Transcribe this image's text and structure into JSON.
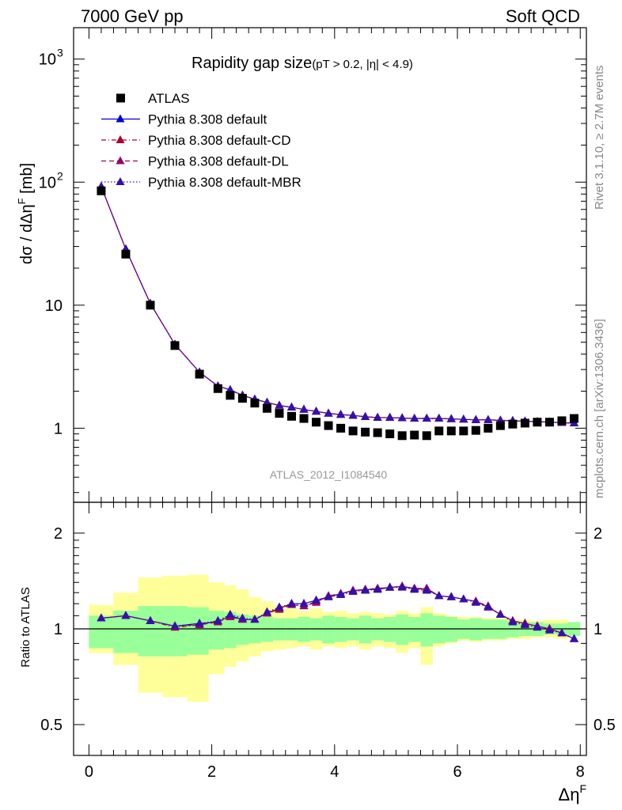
{
  "header": {
    "left": "7000 GeV pp",
    "right": "Soft QCD"
  },
  "side_labels": {
    "rivet": "Rivet 3.1.10, ≥ 2.7M events",
    "mcplots": "mcplots.cern.ch [arXiv:1306.3436]"
  },
  "chart_data": {
    "type": "scatter",
    "title": "Rapidity gap size",
    "subtitle": "(pT > 0.2, |η| < 4.9)",
    "analysis_tag": "ATLAS_2012_I1084540",
    "main": {
      "ylabel": "dσ / dΔηF [mb]",
      "ylabel_parts": {
        "a": "dσ / dΔη",
        "sup": "F",
        "b": " [mb]"
      },
      "yscale": "log",
      "ylim": [
        0.25,
        1800
      ],
      "yticks": [
        {
          "value": 1,
          "label": "1"
        },
        {
          "value": 10,
          "label": "10"
        },
        {
          "value": 100,
          "label": "10",
          "sup": "2"
        },
        {
          "value": 1000,
          "label": "10",
          "sup": "3"
        }
      ]
    },
    "ratio": {
      "ylabel": "Ratio to ATLAS",
      "yscale": "log",
      "ylim": [
        0.4,
        2.5
      ],
      "yticks": [
        {
          "value": 0.5,
          "label": "0.5"
        },
        {
          "value": 1,
          "label": "1"
        },
        {
          "value": 2,
          "label": "2"
        }
      ]
    },
    "xlabel": "ΔηF",
    "xlabel_parts": {
      "a": "Δη",
      "sup": "F"
    },
    "xlim": [
      -0.25,
      8.1
    ],
    "xticks": [
      0,
      2,
      4,
      6,
      8
    ],
    "legend_position": "top-left",
    "data": {
      "name": "ATLAS",
      "x": [
        0.2,
        0.6,
        1.0,
        1.4,
        1.8,
        2.1,
        2.3,
        2.5,
        2.7,
        2.9,
        3.1,
        3.3,
        3.5,
        3.7,
        3.9,
        4.1,
        4.3,
        4.5,
        4.7,
        4.9,
        5.1,
        5.3,
        5.5,
        5.7,
        5.9,
        6.1,
        6.3,
        6.5,
        6.7,
        6.9,
        7.1,
        7.3,
        7.5,
        7.7,
        7.9
      ],
      "y": [
        85,
        26,
        10,
        4.7,
        2.75,
        2.1,
        1.85,
        1.75,
        1.6,
        1.45,
        1.32,
        1.25,
        1.2,
        1.12,
        1.05,
        1.0,
        0.95,
        0.93,
        0.92,
        0.9,
        0.87,
        0.88,
        0.87,
        0.95,
        0.95,
        0.95,
        0.96,
        1.0,
        1.05,
        1.08,
        1.1,
        1.12,
        1.12,
        1.15,
        1.2
      ]
    },
    "band_inner": [
      0.87,
      1.1,
      0.84,
      1.14,
      0.82,
      1.18,
      0.82,
      1.18,
      0.83,
      1.17,
      0.86,
      1.14,
      0.87,
      1.13,
      0.89,
      1.11,
      0.9,
      1.1,
      0.91,
      1.09,
      0.92,
      1.08,
      0.92,
      1.08,
      0.91,
      1.09,
      0.92,
      1.08,
      0.9,
      1.1,
      0.91,
      1.09,
      0.92,
      1.08,
      0.9,
      1.1,
      0.92,
      1.08,
      0.91,
      1.09,
      0.89,
      1.11,
      0.91,
      1.09,
      0.88,
      1.12,
      0.9,
      1.1,
      0.91,
      1.09,
      0.93,
      1.07,
      0.92,
      1.08,
      0.93,
      1.07,
      0.93,
      1.07,
      0.94,
      1.06,
      0.95,
      1.05,
      0.95,
      1.05,
      0.96,
      1.04,
      0.96,
      1.04,
      0.95,
      1.05
    ],
    "band_outer": [
      0.84,
      1.19,
      0.77,
      1.3,
      0.63,
      1.45,
      0.61,
      1.47,
      0.59,
      1.48,
      0.72,
      1.4,
      0.76,
      1.37,
      0.79,
      1.33,
      0.82,
      1.26,
      0.85,
      1.22,
      0.86,
      1.19,
      0.87,
      1.16,
      0.88,
      1.14,
      0.86,
      1.16,
      0.88,
      1.13,
      0.87,
      1.14,
      0.88,
      1.12,
      0.86,
      1.13,
      0.88,
      1.12,
      0.87,
      1.11,
      0.84,
      1.14,
      0.87,
      1.12,
      0.77,
      1.17,
      0.88,
      1.12,
      0.9,
      1.1,
      0.92,
      1.09,
      0.91,
      1.09,
      0.92,
      1.08,
      0.92,
      1.08,
      0.93,
      1.07,
      0.93,
      1.07,
      0.94,
      1.06,
      0.94,
      1.07,
      0.93,
      1.07
    ],
    "series": [
      {
        "name": "Pythia 8.308 default",
        "color": "#0000cc",
        "line": "solid",
        "x": [
          0.2,
          0.6,
          1.0,
          1.4,
          1.8,
          2.1,
          2.3,
          2.5,
          2.7,
          2.9,
          3.1,
          3.3,
          3.5,
          3.7,
          3.9,
          4.1,
          4.3,
          4.5,
          4.7,
          4.9,
          5.1,
          5.3,
          5.5,
          5.7,
          5.9,
          6.1,
          6.3,
          6.5,
          6.7,
          6.9,
          7.1,
          7.3,
          7.5,
          7.7,
          7.9
        ],
        "y": [
          92,
          28.5,
          10.3,
          4.8,
          2.85,
          2.2,
          2.05,
          1.85,
          1.72,
          1.62,
          1.53,
          1.48,
          1.42,
          1.37,
          1.32,
          1.29,
          1.27,
          1.24,
          1.22,
          1.22,
          1.21,
          1.2,
          1.2,
          1.2,
          1.19,
          1.18,
          1.17,
          1.17,
          1.16,
          1.15,
          1.14,
          1.13,
          1.12,
          1.11,
          1.1
        ]
      },
      {
        "name": "Pythia 8.308 default-CD",
        "color": "#aa0033",
        "line": "dashdot",
        "x": [
          0.2,
          0.6,
          1.0,
          1.4,
          1.8,
          2.1,
          2.3,
          2.5,
          2.7,
          2.9,
          3.1,
          3.3,
          3.5,
          3.7,
          3.9,
          4.1,
          4.3,
          4.5,
          4.7,
          4.9,
          5.1,
          5.3,
          5.5,
          5.7,
          5.9,
          6.1,
          6.3,
          6.5,
          6.7,
          6.9,
          7.1,
          7.3,
          7.5,
          7.7,
          7.9
        ],
        "y": [
          92,
          28.5,
          10.3,
          4.8,
          2.85,
          2.2,
          2.05,
          1.85,
          1.72,
          1.62,
          1.53,
          1.48,
          1.42,
          1.37,
          1.32,
          1.29,
          1.27,
          1.24,
          1.22,
          1.22,
          1.21,
          1.2,
          1.2,
          1.2,
          1.19,
          1.18,
          1.17,
          1.17,
          1.16,
          1.15,
          1.14,
          1.13,
          1.12,
          1.11,
          1.1
        ]
      },
      {
        "name": "Pythia 8.308 default-DL",
        "color": "#990066",
        "line": "dashed",
        "x": [
          0.2,
          0.6,
          1.0,
          1.4,
          1.8,
          2.1,
          2.3,
          2.5,
          2.7,
          2.9,
          3.1,
          3.3,
          3.5,
          3.7,
          3.9,
          4.1,
          4.3,
          4.5,
          4.7,
          4.9,
          5.1,
          5.3,
          5.5,
          5.7,
          5.9,
          6.1,
          6.3,
          6.5,
          6.7,
          6.9,
          7.1,
          7.3,
          7.5,
          7.7,
          7.9
        ],
        "y": [
          92,
          28.5,
          10.3,
          4.8,
          2.85,
          2.2,
          2.05,
          1.85,
          1.72,
          1.62,
          1.53,
          1.48,
          1.42,
          1.37,
          1.32,
          1.29,
          1.27,
          1.24,
          1.22,
          1.22,
          1.21,
          1.2,
          1.2,
          1.2,
          1.19,
          1.18,
          1.17,
          1.17,
          1.16,
          1.15,
          1.14,
          1.13,
          1.12,
          1.11,
          1.1
        ]
      },
      {
        "name": "Pythia 8.308 default-MBR",
        "color": "#3311aa",
        "line": "dotted",
        "x": [
          0.2,
          0.6,
          1.0,
          1.4,
          1.8,
          2.1,
          2.3,
          2.5,
          2.7,
          2.9,
          3.1,
          3.3,
          3.5,
          3.7,
          3.9,
          4.1,
          4.3,
          4.5,
          4.7,
          4.9,
          5.1,
          5.3,
          5.5,
          5.7,
          5.9,
          6.1,
          6.3,
          6.5,
          6.7,
          6.9,
          7.1,
          7.3,
          7.5,
          7.7,
          7.9
        ],
        "y": [
          92,
          28.5,
          10.3,
          4.8,
          2.85,
          2.2,
          2.05,
          1.85,
          1.72,
          1.62,
          1.53,
          1.48,
          1.42,
          1.37,
          1.32,
          1.29,
          1.27,
          1.24,
          1.22,
          1.22,
          1.21,
          1.2,
          1.2,
          1.2,
          1.19,
          1.18,
          1.17,
          1.17,
          1.16,
          1.15,
          1.14,
          1.13,
          1.12,
          1.11,
          1.1
        ]
      }
    ],
    "ratio_series": [
      {
        "name": "Pythia 8.308 default",
        "y": [
          1.08,
          1.1,
          1.06,
          1.02,
          1.04,
          1.05,
          1.1,
          1.07,
          1.07,
          1.12,
          1.16,
          1.2,
          1.2,
          1.23,
          1.26,
          1.29,
          1.32,
          1.33,
          1.33,
          1.35,
          1.36,
          1.34,
          1.33,
          1.27,
          1.26,
          1.24,
          1.22,
          1.17,
          1.11,
          1.06,
          1.04,
          1.02,
          1.0,
          0.97,
          0.93
        ]
      },
      {
        "name": "Pythia 8.308 default-CD",
        "y": [
          1.08,
          1.1,
          1.06,
          1.01,
          1.03,
          1.06,
          1.09,
          1.07,
          1.07,
          1.12,
          1.16,
          1.2,
          1.18,
          1.22,
          1.26,
          1.28,
          1.31,
          1.33,
          1.34,
          1.35,
          1.36,
          1.33,
          1.34,
          1.27,
          1.26,
          1.24,
          1.22,
          1.18,
          1.11,
          1.06,
          1.04,
          1.02,
          1.0,
          0.97,
          0.93
        ]
      },
      {
        "name": "Pythia 8.308 default-DL",
        "y": [
          1.08,
          1.1,
          1.06,
          1.02,
          1.03,
          1.05,
          1.09,
          1.07,
          1.07,
          1.12,
          1.15,
          1.19,
          1.18,
          1.21,
          1.27,
          1.29,
          1.32,
          1.33,
          1.34,
          1.35,
          1.36,
          1.34,
          1.34,
          1.27,
          1.26,
          1.24,
          1.22,
          1.17,
          1.11,
          1.06,
          1.04,
          1.02,
          1.0,
          0.97,
          0.93
        ]
      },
      {
        "name": "Pythia 8.308 default-MBR",
        "y": [
          1.08,
          1.1,
          1.06,
          1.02,
          1.04,
          1.06,
          1.11,
          1.08,
          1.07,
          1.13,
          1.17,
          1.2,
          1.2,
          1.23,
          1.26,
          1.28,
          1.31,
          1.32,
          1.33,
          1.35,
          1.35,
          1.33,
          1.32,
          1.27,
          1.26,
          1.24,
          1.21,
          1.17,
          1.11,
          1.05,
          1.03,
          1.01,
          0.99,
          0.97,
          0.93
        ]
      }
    ]
  }
}
